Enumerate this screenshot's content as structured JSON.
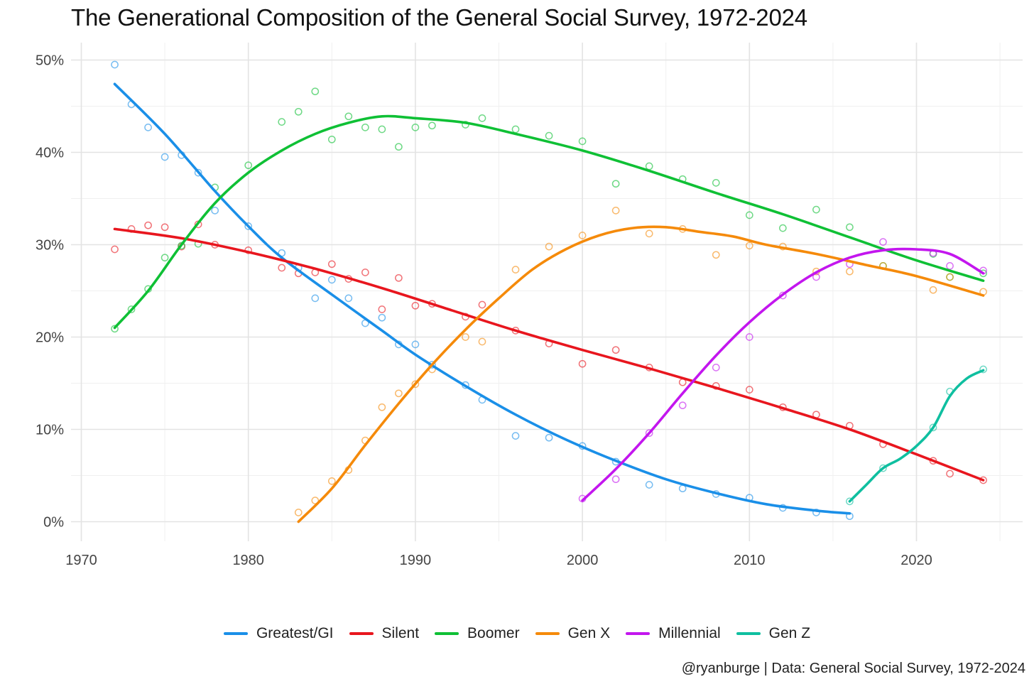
{
  "chart_data": {
    "type": "line",
    "title": "The Generational Composition of the General Social Survey, 1972-2024",
    "caption": "@ryanburge | Data: General Social Survey, 1972-2024",
    "xlabel": "",
    "ylabel": "",
    "xlim": [
      1970,
      2025
    ],
    "ylim": [
      0,
      50
    ],
    "x_ticks": [
      1970,
      1980,
      1990,
      2000,
      2010,
      2020
    ],
    "x_tick_labels": [
      "1970",
      "1980",
      "1990",
      "2000",
      "2010",
      "2020"
    ],
    "y_ticks": [
      0,
      10,
      20,
      30,
      40,
      50
    ],
    "y_tick_labels": [
      "0%",
      "10%",
      "20%",
      "30%",
      "40%",
      "50%"
    ],
    "grid": true,
    "legend_position": "bottom",
    "series": [
      {
        "name": "Greatest/GI",
        "color": "#1a8fe8",
        "points": [
          [
            1972,
            49.5
          ],
          [
            1973,
            45.2
          ],
          [
            1974,
            42.7
          ],
          [
            1975,
            39.5
          ],
          [
            1976,
            39.7
          ],
          [
            1977,
            37.8
          ],
          [
            1978,
            33.7
          ],
          [
            1980,
            32.0
          ],
          [
            1982,
            29.1
          ],
          [
            1983,
            27.5
          ],
          [
            1984,
            24.2
          ],
          [
            1985,
            26.2
          ],
          [
            1986,
            24.2
          ],
          [
            1987,
            21.5
          ],
          [
            1988,
            22.1
          ],
          [
            1989,
            19.2
          ],
          [
            1990,
            19.2
          ],
          [
            1991,
            17.0
          ],
          [
            1993,
            14.8
          ],
          [
            1994,
            13.2
          ],
          [
            1996,
            9.3
          ],
          [
            1998,
            9.1
          ],
          [
            2000,
            8.2
          ],
          [
            2002,
            6.5
          ],
          [
            2004,
            4.0
          ],
          [
            2006,
            3.6
          ],
          [
            2008,
            3.0
          ],
          [
            2010,
            2.6
          ],
          [
            2012,
            1.5
          ],
          [
            2014,
            1.0
          ],
          [
            2016,
            0.6
          ]
        ],
        "trend": [
          [
            1972,
            47.4
          ],
          [
            1975,
            42.0
          ],
          [
            1978,
            35.8
          ],
          [
            1980,
            32.0
          ],
          [
            1982,
            28.6
          ],
          [
            1985,
            24.6
          ],
          [
            1988,
            20.7
          ],
          [
            1990,
            18.1
          ],
          [
            1993,
            14.7
          ],
          [
            1996,
            11.6
          ],
          [
            1999,
            8.9
          ],
          [
            2002,
            6.6
          ],
          [
            2005,
            4.6
          ],
          [
            2008,
            3.1
          ],
          [
            2011,
            1.9
          ],
          [
            2014,
            1.2
          ],
          [
            2016,
            0.9
          ]
        ]
      },
      {
        "name": "Silent",
        "color": "#e8161e",
        "points": [
          [
            1972,
            29.5
          ],
          [
            1973,
            31.7
          ],
          [
            1974,
            32.1
          ],
          [
            1975,
            31.9
          ],
          [
            1976,
            29.8
          ],
          [
            1977,
            32.2
          ],
          [
            1978,
            30.0
          ],
          [
            1980,
            29.4
          ],
          [
            1982,
            27.5
          ],
          [
            1983,
            26.9
          ],
          [
            1984,
            27.0
          ],
          [
            1985,
            27.9
          ],
          [
            1986,
            26.3
          ],
          [
            1987,
            27.0
          ],
          [
            1988,
            23.0
          ],
          [
            1989,
            26.4
          ],
          [
            1990,
            23.4
          ],
          [
            1991,
            23.6
          ],
          [
            1993,
            22.2
          ],
          [
            1994,
            23.5
          ],
          [
            1996,
            20.7
          ],
          [
            1998,
            19.3
          ],
          [
            2000,
            17.1
          ],
          [
            2002,
            18.6
          ],
          [
            2004,
            16.7
          ],
          [
            2006,
            15.1
          ],
          [
            2008,
            14.7
          ],
          [
            2010,
            14.3
          ],
          [
            2012,
            12.4
          ],
          [
            2014,
            11.6
          ],
          [
            2016,
            10.4
          ],
          [
            2018,
            8.4
          ],
          [
            2021,
            6.6
          ],
          [
            2022,
            5.2
          ],
          [
            2024,
            4.5
          ]
        ],
        "trend": [
          [
            1972,
            31.7
          ],
          [
            1976,
            30.7
          ],
          [
            1980,
            29.2
          ],
          [
            1984,
            27.4
          ],
          [
            1988,
            25.3
          ],
          [
            1992,
            23.0
          ],
          [
            1996,
            20.7
          ],
          [
            2000,
            18.6
          ],
          [
            2004,
            16.6
          ],
          [
            2008,
            14.5
          ],
          [
            2012,
            12.3
          ],
          [
            2016,
            10.0
          ],
          [
            2020,
            7.3
          ],
          [
            2024,
            4.5
          ]
        ]
      },
      {
        "name": "Boomer",
        "color": "#0fc035",
        "points": [
          [
            1972,
            20.9
          ],
          [
            1973,
            23.0
          ],
          [
            1974,
            25.2
          ],
          [
            1975,
            28.6
          ],
          [
            1976,
            29.9
          ],
          [
            1977,
            30.1
          ],
          [
            1978,
            36.2
          ],
          [
            1980,
            38.6
          ],
          [
            1982,
            43.3
          ],
          [
            1983,
            44.4
          ],
          [
            1984,
            46.6
          ],
          [
            1985,
            41.4
          ],
          [
            1986,
            43.9
          ],
          [
            1987,
            42.7
          ],
          [
            1988,
            42.5
          ],
          [
            1989,
            40.6
          ],
          [
            1990,
            42.7
          ],
          [
            1991,
            42.9
          ],
          [
            1993,
            43.0
          ],
          [
            1994,
            43.7
          ],
          [
            1996,
            42.5
          ],
          [
            1998,
            41.8
          ],
          [
            2000,
            41.2
          ],
          [
            2002,
            36.6
          ],
          [
            2004,
            38.5
          ],
          [
            2006,
            37.1
          ],
          [
            2008,
            36.7
          ],
          [
            2010,
            33.2
          ],
          [
            2012,
            31.8
          ],
          [
            2014,
            33.8
          ],
          [
            2016,
            31.9
          ],
          [
            2018,
            27.7
          ],
          [
            2021,
            29.0
          ],
          [
            2022,
            26.5
          ],
          [
            2024,
            26.9
          ]
        ],
        "trend": [
          [
            1972,
            21.0
          ],
          [
            1974,
            25.0
          ],
          [
            1976,
            30.0
          ],
          [
            1978,
            34.5
          ],
          [
            1980,
            37.8
          ],
          [
            1982,
            40.2
          ],
          [
            1984,
            42.0
          ],
          [
            1986,
            43.2
          ],
          [
            1988,
            43.9
          ],
          [
            1990,
            43.7
          ],
          [
            1993,
            43.2
          ],
          [
            1996,
            42.0
          ],
          [
            2000,
            40.2
          ],
          [
            2004,
            38.0
          ],
          [
            2008,
            35.6
          ],
          [
            2012,
            33.3
          ],
          [
            2016,
            30.8
          ],
          [
            2020,
            28.3
          ],
          [
            2024,
            26.1
          ]
        ]
      },
      {
        "name": "Gen X",
        "color": "#f58a0a",
        "points": [
          [
            1983,
            1.0
          ],
          [
            1984,
            2.3
          ],
          [
            1985,
            4.4
          ],
          [
            1986,
            5.6
          ],
          [
            1987,
            8.8
          ],
          [
            1988,
            12.4
          ],
          [
            1989,
            13.9
          ],
          [
            1990,
            14.9
          ],
          [
            1991,
            16.5
          ],
          [
            1993,
            20.0
          ],
          [
            1994,
            19.5
          ],
          [
            1996,
            27.3
          ],
          [
            1998,
            29.8
          ],
          [
            2000,
            31.0
          ],
          [
            2002,
            33.7
          ],
          [
            2004,
            31.2
          ],
          [
            2006,
            31.7
          ],
          [
            2008,
            28.9
          ],
          [
            2010,
            29.9
          ],
          [
            2012,
            29.8
          ],
          [
            2014,
            27.1
          ],
          [
            2016,
            27.1
          ],
          [
            2018,
            27.7
          ],
          [
            2021,
            25.1
          ],
          [
            2022,
            26.5
          ],
          [
            2024,
            24.9
          ]
        ],
        "trend": [
          [
            1983,
            0.0
          ],
          [
            1985,
            3.6
          ],
          [
            1987,
            8.3
          ],
          [
            1989,
            12.8
          ],
          [
            1991,
            17.0
          ],
          [
            1993,
            20.8
          ],
          [
            1995,
            24.2
          ],
          [
            1997,
            27.3
          ],
          [
            1999,
            29.5
          ],
          [
            2001,
            31.0
          ],
          [
            2003,
            31.8
          ],
          [
            2005,
            31.9
          ],
          [
            2007,
            31.4
          ],
          [
            2009,
            30.9
          ],
          [
            2011,
            30.0
          ],
          [
            2014,
            29.0
          ],
          [
            2017,
            27.8
          ],
          [
            2020,
            26.6
          ],
          [
            2024,
            24.5
          ]
        ]
      },
      {
        "name": "Millennial",
        "color": "#c316ee",
        "points": [
          [
            2000,
            2.5
          ],
          [
            2002,
            4.6
          ],
          [
            2004,
            9.6
          ],
          [
            2006,
            12.6
          ],
          [
            2008,
            16.7
          ],
          [
            2010,
            20.0
          ],
          [
            2012,
            24.5
          ],
          [
            2014,
            26.5
          ],
          [
            2016,
            27.9
          ],
          [
            2018,
            30.3
          ],
          [
            2021,
            29.1
          ],
          [
            2022,
            27.7
          ],
          [
            2024,
            27.2
          ]
        ],
        "trend": [
          [
            2000,
            2.3
          ],
          [
            2002,
            5.7
          ],
          [
            2004,
            9.6
          ],
          [
            2006,
            13.9
          ],
          [
            2008,
            18.0
          ],
          [
            2010,
            21.6
          ],
          [
            2012,
            24.6
          ],
          [
            2014,
            27.0
          ],
          [
            2016,
            28.6
          ],
          [
            2018,
            29.4
          ],
          [
            2020,
            29.5
          ],
          [
            2022,
            29.0
          ],
          [
            2024,
            26.9
          ]
        ]
      },
      {
        "name": "Gen Z",
        "color": "#0fbfa0",
        "points": [
          [
            2016,
            2.2
          ],
          [
            2018,
            5.8
          ],
          [
            2021,
            10.2
          ],
          [
            2022,
            14.1
          ],
          [
            2024,
            16.5
          ]
        ],
        "trend": [
          [
            2016,
            2.2
          ],
          [
            2017,
            4.0
          ],
          [
            2018,
            5.8
          ],
          [
            2019,
            6.8
          ],
          [
            2020,
            8.2
          ],
          [
            2021,
            10.2
          ],
          [
            2022,
            13.6
          ],
          [
            2023,
            15.5
          ],
          [
            2024,
            16.4
          ]
        ]
      }
    ]
  }
}
